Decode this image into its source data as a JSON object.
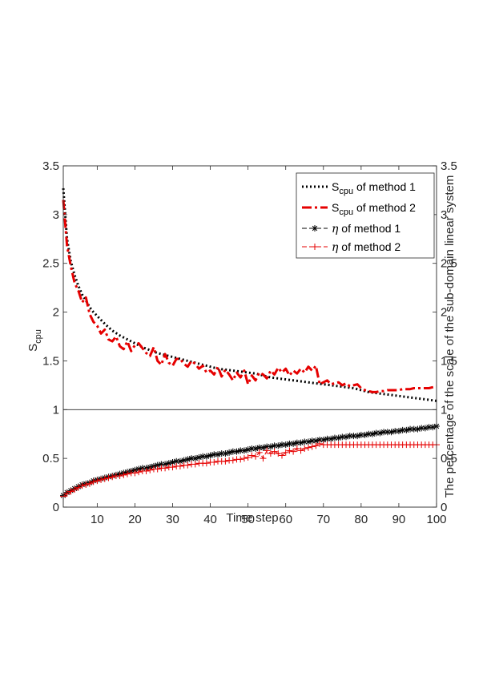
{
  "chart_data": {
    "type": "line",
    "xlabel": "Time step",
    "ylabel_main": "S",
    "ylabel_sub": "cpu",
    "ylabel_right": "The percentage of the scale of the sub-domain linear system",
    "xlim": [
      1,
      100
    ],
    "ylim": [
      0,
      3.5
    ],
    "x_ticks": [
      10,
      20,
      30,
      40,
      50,
      60,
      70,
      80,
      90,
      100
    ],
    "y_ticks_left": [
      0,
      0.5,
      1,
      1.5,
      2,
      2.5,
      3,
      3.5
    ],
    "y_ticks_right": [
      0,
      0.5,
      1,
      1.5,
      2,
      2.5,
      3,
      3.5
    ],
    "divider_y": 1,
    "grid": false,
    "legend_position": "top-right",
    "series": [
      {
        "id": "scpu1",
        "legend_main": "S",
        "legend_sub": "cpu",
        "legend_rest": " of method 1",
        "color": "#000000",
        "style": "dotted",
        "x": [
          1,
          2,
          3,
          4,
          5,
          6,
          7,
          8,
          9,
          10,
          12,
          14,
          16,
          18,
          20,
          22,
          24,
          26,
          28,
          30,
          32,
          34,
          36,
          38,
          40,
          42,
          44,
          46,
          48,
          50,
          52,
          54,
          56,
          58,
          60,
          62,
          64,
          66,
          68,
          70,
          72,
          74,
          76,
          78,
          80,
          82,
          84,
          86,
          88,
          90,
          92,
          94,
          96,
          98,
          100
        ],
        "values": [
          3.27,
          2.75,
          2.52,
          2.38,
          2.27,
          2.18,
          2.12,
          2.05,
          2.0,
          1.96,
          1.88,
          1.81,
          1.76,
          1.72,
          1.68,
          1.64,
          1.61,
          1.58,
          1.56,
          1.54,
          1.52,
          1.5,
          1.48,
          1.46,
          1.44,
          1.42,
          1.41,
          1.4,
          1.39,
          1.38,
          1.37,
          1.35,
          1.33,
          1.32,
          1.31,
          1.3,
          1.29,
          1.28,
          1.27,
          1.26,
          1.25,
          1.24,
          1.23,
          1.22,
          1.2,
          1.18,
          1.17,
          1.16,
          1.15,
          1.14,
          1.13,
          1.12,
          1.11,
          1.1,
          1.09
        ]
      },
      {
        "id": "scpu2",
        "legend_main": "S",
        "legend_sub": "cpu",
        "legend_rest": " of method 2",
        "color": "#e60000",
        "style": "dashdot",
        "x": [
          1,
          2,
          3,
          4,
          5,
          6,
          7,
          8,
          9,
          10,
          11,
          12,
          13,
          14,
          15,
          16,
          17,
          18,
          19,
          20,
          21,
          22,
          23,
          24,
          25,
          26,
          27,
          28,
          29,
          30,
          31,
          32,
          33,
          34,
          35,
          36,
          37,
          38,
          39,
          40,
          41,
          42,
          43,
          44,
          45,
          46,
          47,
          48,
          49,
          50,
          51,
          52,
          53,
          54,
          55,
          56,
          57,
          58,
          59,
          60,
          61,
          62,
          63,
          64,
          65,
          66,
          67,
          68,
          69,
          70,
          71,
          72,
          73,
          74,
          75,
          76,
          77,
          78,
          79,
          80,
          81,
          82,
          83,
          84,
          85,
          86,
          87,
          88,
          89,
          90,
          91,
          92,
          93,
          94,
          95,
          96,
          97,
          98,
          99,
          100
        ],
        "values": [
          3.15,
          2.68,
          2.47,
          2.3,
          2.22,
          2.1,
          2.15,
          1.98,
          1.9,
          1.86,
          1.78,
          1.82,
          1.72,
          1.7,
          1.75,
          1.65,
          1.62,
          1.7,
          1.6,
          1.66,
          1.68,
          1.63,
          1.58,
          1.55,
          1.64,
          1.5,
          1.46,
          1.57,
          1.48,
          1.45,
          1.52,
          1.52,
          1.47,
          1.44,
          1.5,
          1.47,
          1.42,
          1.45,
          1.38,
          1.4,
          1.36,
          1.44,
          1.34,
          1.41,
          1.36,
          1.3,
          1.38,
          1.33,
          1.4,
          1.26,
          1.35,
          1.3,
          1.38,
          1.36,
          1.32,
          1.4,
          1.36,
          1.43,
          1.38,
          1.42,
          1.35,
          1.4,
          1.37,
          1.42,
          1.38,
          1.44,
          1.4,
          1.45,
          1.26,
          1.28,
          1.3,
          1.26,
          1.27,
          1.28,
          1.25,
          1.27,
          1.24,
          1.25,
          1.26,
          1.22,
          1.2,
          1.19,
          1.18,
          1.18,
          1.19,
          1.19,
          1.2,
          1.2,
          1.2,
          1.2,
          1.21,
          1.21,
          1.21,
          1.22,
          1.22,
          1.22,
          1.22,
          1.22,
          1.23,
          1.24
        ]
      },
      {
        "id": "eta1",
        "legend_greek": "η",
        "legend_rest": " of method 1",
        "color": "#000000",
        "style": "dash-star",
        "x": [
          1,
          2,
          3,
          4,
          5,
          6,
          7,
          8,
          9,
          10,
          11,
          12,
          13,
          14,
          15,
          16,
          17,
          18,
          19,
          20,
          21,
          22,
          23,
          24,
          25,
          26,
          27,
          28,
          29,
          30,
          31,
          32,
          33,
          34,
          35,
          36,
          37,
          38,
          39,
          40,
          41,
          42,
          43,
          44,
          45,
          46,
          47,
          48,
          49,
          50,
          51,
          52,
          53,
          54,
          55,
          56,
          57,
          58,
          59,
          60,
          61,
          62,
          63,
          64,
          65,
          66,
          67,
          68,
          69,
          70,
          71,
          72,
          73,
          74,
          75,
          76,
          77,
          78,
          79,
          80,
          81,
          82,
          83,
          84,
          85,
          86,
          87,
          88,
          89,
          90,
          91,
          92,
          93,
          94,
          95,
          96,
          97,
          98,
          99,
          100
        ],
        "values": [
          0.12,
          0.15,
          0.17,
          0.19,
          0.21,
          0.23,
          0.24,
          0.25,
          0.27,
          0.28,
          0.29,
          0.3,
          0.31,
          0.32,
          0.33,
          0.34,
          0.35,
          0.36,
          0.37,
          0.38,
          0.39,
          0.4,
          0.4,
          0.41,
          0.42,
          0.43,
          0.44,
          0.44,
          0.45,
          0.46,
          0.47,
          0.47,
          0.48,
          0.49,
          0.5,
          0.5,
          0.51,
          0.52,
          0.52,
          0.53,
          0.54,
          0.54,
          0.55,
          0.55,
          0.56,
          0.57,
          0.57,
          0.58,
          0.58,
          0.59,
          0.6,
          0.6,
          0.61,
          0.61,
          0.62,
          0.62,
          0.63,
          0.63,
          0.64,
          0.64,
          0.65,
          0.65,
          0.66,
          0.66,
          0.67,
          0.67,
          0.68,
          0.68,
          0.69,
          0.69,
          0.7,
          0.7,
          0.71,
          0.71,
          0.72,
          0.72,
          0.73,
          0.73,
          0.73,
          0.74,
          0.74,
          0.75,
          0.75,
          0.76,
          0.76,
          0.77,
          0.77,
          0.77,
          0.78,
          0.78,
          0.79,
          0.79,
          0.8,
          0.8,
          0.8,
          0.81,
          0.81,
          0.82,
          0.82,
          0.83
        ]
      },
      {
        "id": "eta2",
        "legend_greek": "η",
        "legend_rest": " of method 2",
        "color": "#e60000",
        "style": "dash-plus",
        "x": [
          1,
          2,
          3,
          4,
          5,
          6,
          7,
          8,
          9,
          10,
          11,
          12,
          13,
          14,
          15,
          16,
          17,
          18,
          19,
          20,
          21,
          22,
          23,
          24,
          25,
          26,
          27,
          28,
          29,
          30,
          31,
          32,
          33,
          34,
          35,
          36,
          37,
          38,
          39,
          40,
          41,
          42,
          43,
          44,
          45,
          46,
          47,
          48,
          49,
          50,
          51,
          52,
          53,
          54,
          55,
          56,
          57,
          58,
          59,
          60,
          61,
          62,
          63,
          64,
          65,
          66,
          67,
          68,
          69,
          70,
          71,
          72,
          73,
          74,
          75,
          76,
          77,
          78,
          79,
          80,
          81,
          82,
          83,
          84,
          85,
          86,
          87,
          88,
          89,
          90,
          91,
          92,
          93,
          94,
          95,
          96,
          97,
          98,
          99,
          100
        ],
        "values": [
          0.11,
          0.14,
          0.16,
          0.18,
          0.2,
          0.22,
          0.23,
          0.24,
          0.26,
          0.27,
          0.28,
          0.29,
          0.3,
          0.31,
          0.32,
          0.32,
          0.33,
          0.34,
          0.35,
          0.35,
          0.36,
          0.37,
          0.37,
          0.38,
          0.39,
          0.39,
          0.4,
          0.4,
          0.41,
          0.41,
          0.42,
          0.42,
          0.43,
          0.43,
          0.44,
          0.44,
          0.45,
          0.45,
          0.45,
          0.46,
          0.46,
          0.47,
          0.47,
          0.47,
          0.48,
          0.48,
          0.49,
          0.49,
          0.5,
          0.51,
          0.53,
          0.52,
          0.56,
          0.5,
          0.58,
          0.55,
          0.57,
          0.55,
          0.53,
          0.56,
          0.58,
          0.57,
          0.6,
          0.58,
          0.6,
          0.61,
          0.62,
          0.63,
          0.65,
          0.64,
          0.64,
          0.64,
          0.64,
          0.64,
          0.64,
          0.64,
          0.64,
          0.64,
          0.64,
          0.64,
          0.64,
          0.64,
          0.64,
          0.64,
          0.64,
          0.64,
          0.64,
          0.64,
          0.64,
          0.64,
          0.64,
          0.64,
          0.64,
          0.64,
          0.64,
          0.64,
          0.64,
          0.64,
          0.64,
          0.64
        ]
      }
    ]
  }
}
